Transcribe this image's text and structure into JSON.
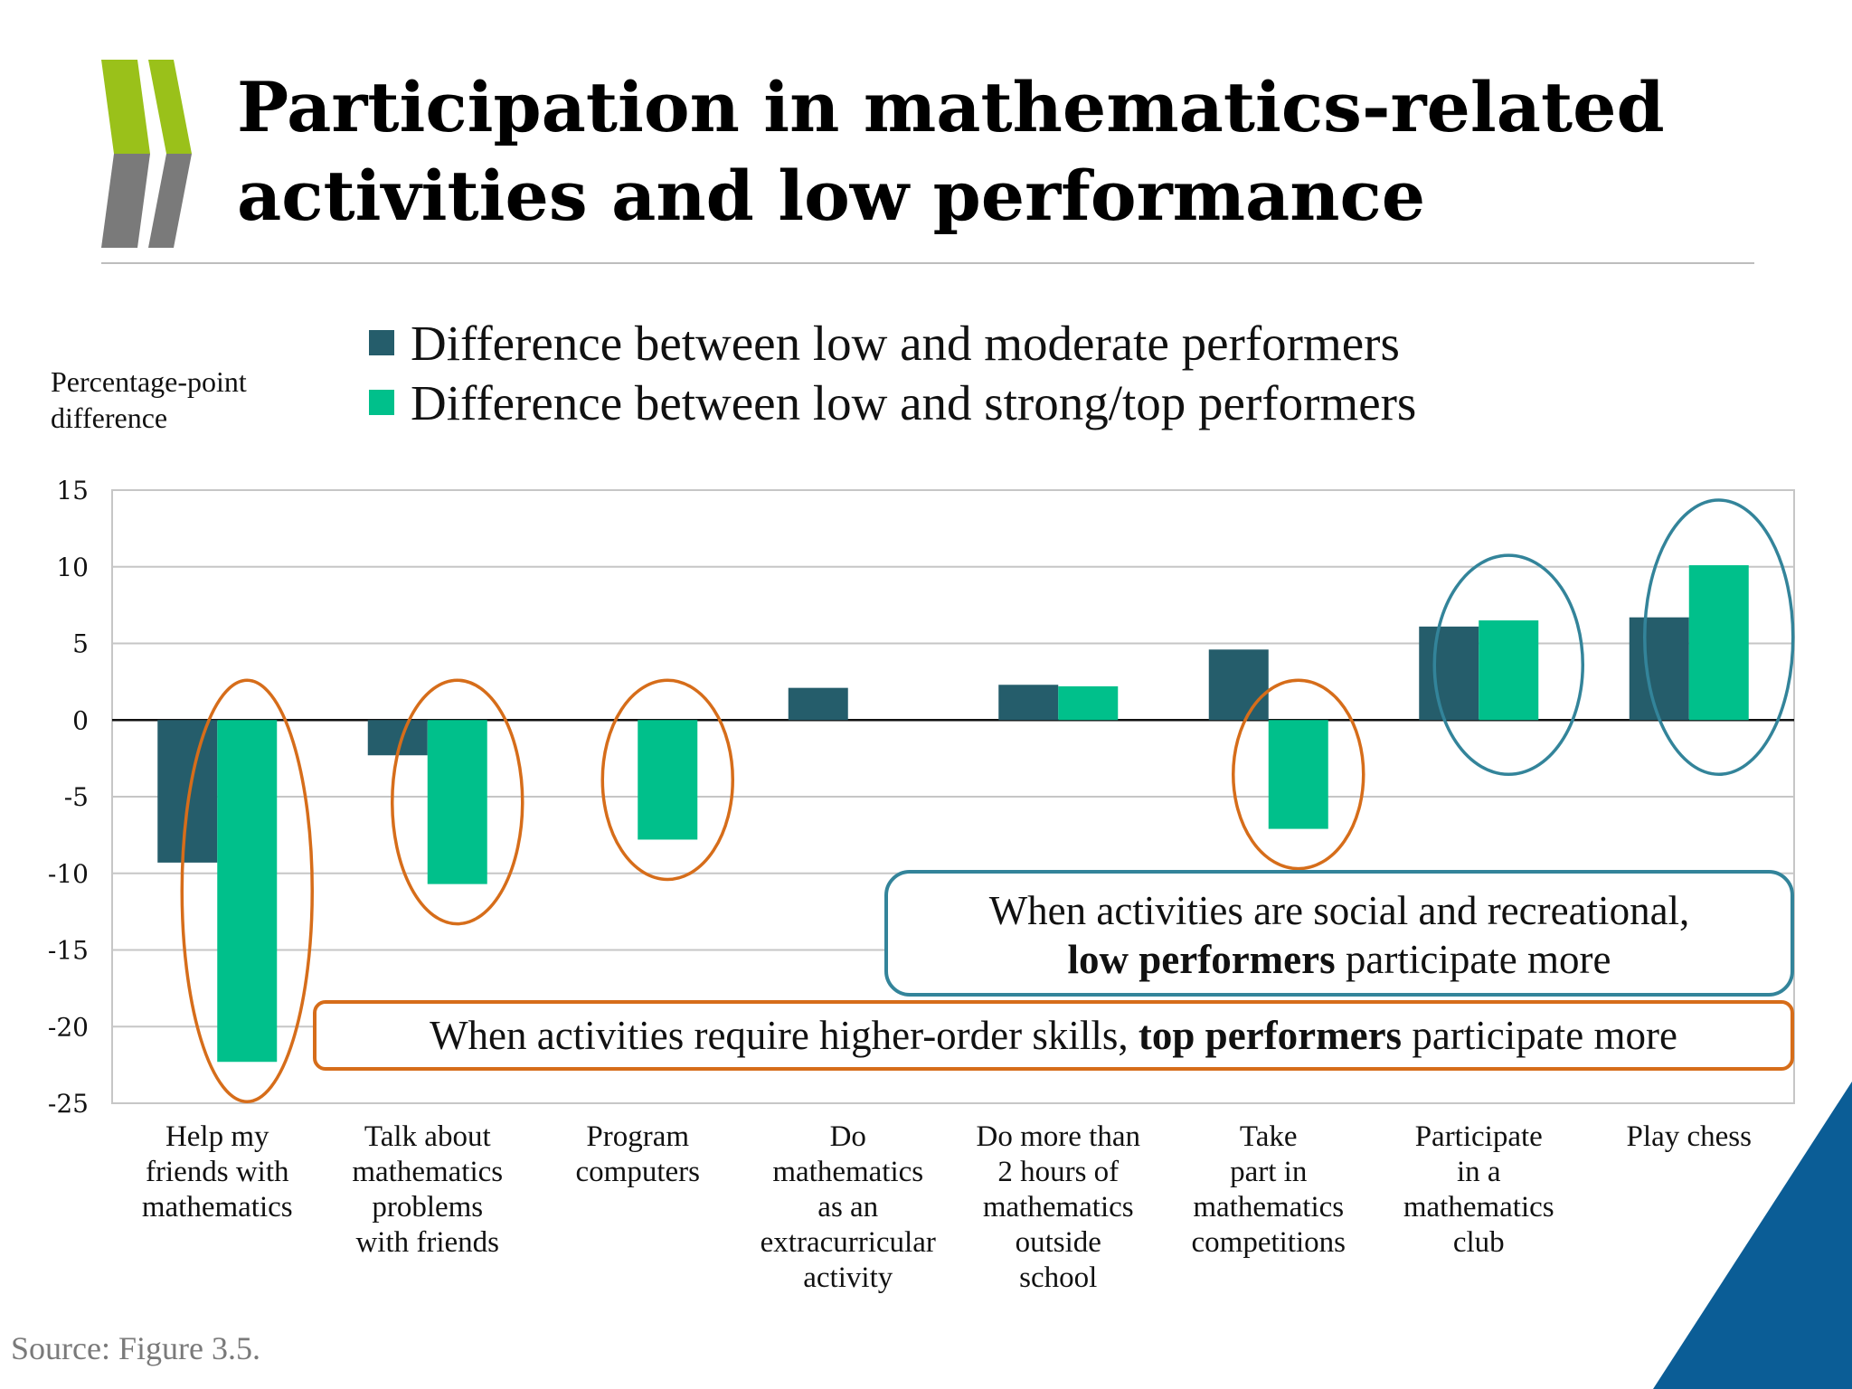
{
  "header": {
    "title_line1": "Participation in mathematics-related",
    "title_line2": "activities and low performance",
    "logo_icon": "oecd-chevrons-logo"
  },
  "colors": {
    "series1": "#255d6b",
    "series2": "#00c08b",
    "orange_ellipse": "#d66d1a",
    "teal_ellipse": "#33849a",
    "gridline": "#c6c6c6",
    "corner_blue": "#0b5d96"
  },
  "callouts": {
    "social_line1": "When activities are social and recreational,",
    "social_bold": "low performers",
    "social_rest": " participate more",
    "skills_text": "When activities require higher-order skills, ",
    "skills_bold": "top performers",
    "skills_rest": " participate more"
  },
  "source": "Source: Figure 3.5.",
  "chart_data": {
    "type": "bar",
    "ylabel": "Percentage-point difference",
    "ylim": [
      -25,
      15
    ],
    "yticks": [
      15,
      10,
      5,
      0,
      -5,
      -10,
      -15,
      -20,
      -25
    ],
    "grid": true,
    "legend_position": "top",
    "categories": [
      "Help my friends with mathematics",
      "Talk about mathematics problems with friends",
      "Program computers",
      "Do mathematics as an extracurricular activity",
      "Do more than 2 hours of mathematics outside school",
      "Take part in mathematics competitions",
      "Participate in a mathematics club",
      "Play chess"
    ],
    "series": [
      {
        "name": "Difference between low and moderate performers",
        "values": [
          -9.3,
          -2.3,
          0.0,
          2.1,
          2.3,
          4.6,
          6.1,
          6.7
        ]
      },
      {
        "name": "Difference between low and strong/top performers",
        "values": [
          -22.3,
          -10.7,
          -7.8,
          0.0,
          2.2,
          -7.1,
          6.5,
          10.1
        ]
      }
    ],
    "highlighted_categories_orange": [
      0,
      1,
      2,
      5
    ],
    "highlighted_categories_teal": [
      6,
      7
    ]
  }
}
